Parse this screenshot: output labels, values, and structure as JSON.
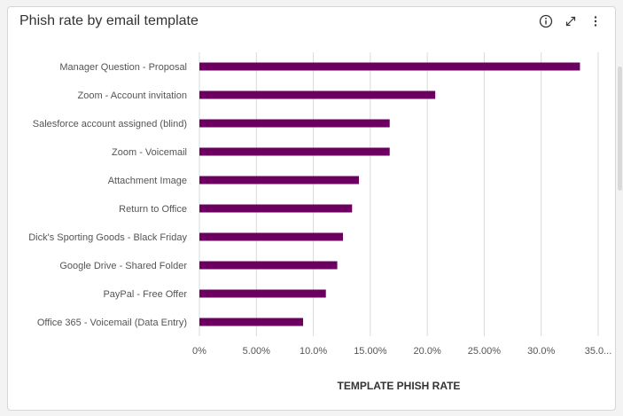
{
  "card": {
    "title": "Phish rate by email template",
    "tools": [
      "info-icon",
      "expand-icon",
      "more-vertical-icon"
    ]
  },
  "colors": {
    "bar": "#6c0060",
    "grid": "#d9d9d9",
    "label": "#555555",
    "axis_title": "#333333"
  },
  "chart_data": {
    "type": "bar",
    "orientation": "horizontal",
    "title": "Phish rate by email template",
    "xlabel": "TEMPLATE PHISH RATE",
    "ylabel": "",
    "categories": [
      "Manager Question - Proposal",
      "Zoom - Account invitation",
      "Salesforce account assigned (blind)",
      "Zoom - Voicemail",
      "Attachment Image",
      "Return to Office",
      "Dick's Sporting Goods - Black Friday",
      "Google Drive - Shared Folder",
      "PayPal - Free Offer",
      "Office 365 - Voicemail (Data Entry)"
    ],
    "values": [
      33.4,
      20.7,
      16.7,
      16.7,
      14.0,
      13.4,
      12.6,
      12.1,
      11.1,
      9.1
    ],
    "xlim": [
      0,
      35
    ],
    "xticks": [
      0,
      5,
      10,
      15,
      20,
      25,
      30,
      35
    ],
    "xtick_labels": [
      "0%",
      "5.00%",
      "10.0%",
      "15.00%",
      "20.0%",
      "25.00%",
      "30.0%",
      "35.0..."
    ],
    "grid": true,
    "legend": "none"
  }
}
